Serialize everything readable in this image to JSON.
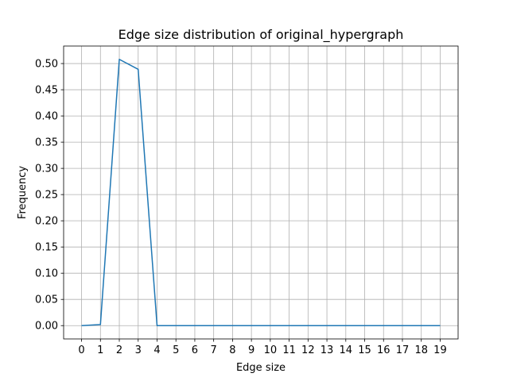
{
  "chart_data": {
    "type": "line",
    "title": "Edge size distribution of original_hypergraph",
    "xlabel": "Edge size",
    "ylabel": "Frequency",
    "x": [
      0,
      1,
      2,
      3,
      4,
      5,
      6,
      7,
      8,
      9,
      10,
      11,
      12,
      13,
      14,
      15,
      16,
      17,
      18,
      19
    ],
    "x_tick_labels": [
      "0",
      "1",
      "2",
      "3",
      "4",
      "5",
      "6",
      "7",
      "8",
      "9",
      "10",
      "11",
      "12",
      "13",
      "14",
      "15",
      "16",
      "17",
      "18",
      "19"
    ],
    "y_tick_labels": [
      "0.00",
      "0.05",
      "0.10",
      "0.15",
      "0.20",
      "0.25",
      "0.30",
      "0.35",
      "0.40",
      "0.45",
      "0.50"
    ],
    "y_ticks": [
      0.0,
      0.05,
      0.1,
      0.15,
      0.2,
      0.25,
      0.3,
      0.35,
      0.4,
      0.45,
      0.5
    ],
    "series": [
      {
        "values": [
          0.0,
          0.002,
          0.508,
          0.489,
          0.0,
          0.0,
          0.0,
          0.0,
          0.0,
          0.0,
          0.0,
          0.0,
          0.0,
          0.0,
          0.0,
          0.0,
          0.0,
          0.0,
          0.0,
          0.0
        ],
        "color": "#1f77b4"
      }
    ],
    "xlim": [
      -0.95,
      19.95
    ],
    "ylim": [
      -0.0254,
      0.5334
    ],
    "grid": true,
    "grid_color": "#b0b0b0"
  }
}
